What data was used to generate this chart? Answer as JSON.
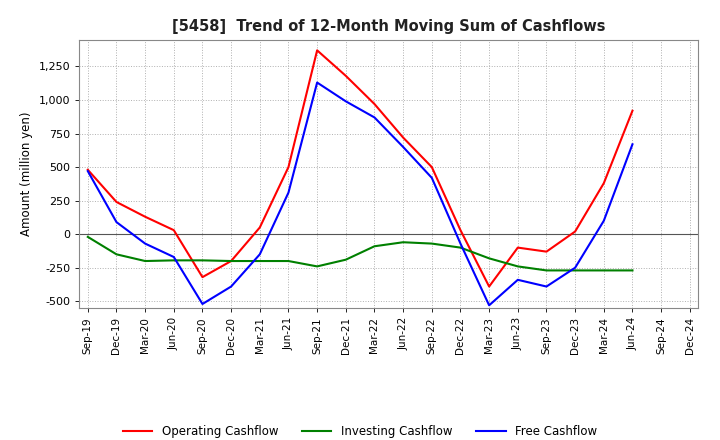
{
  "title": "[5458]  Trend of 12-Month Moving Sum of Cashflows",
  "ylabel": "Amount (million yen)",
  "ylim": [
    -550,
    1450
  ],
  "yticks": [
    -500,
    -250,
    0,
    250,
    500,
    750,
    1000,
    1250
  ],
  "background_color": "#ffffff",
  "grid_color": "#b0b0b0",
  "dates": [
    "Sep-19",
    "Dec-19",
    "Mar-20",
    "Jun-20",
    "Sep-20",
    "Dec-20",
    "Mar-21",
    "Jun-21",
    "Sep-21",
    "Dec-21",
    "Mar-22",
    "Jun-22",
    "Sep-22",
    "Dec-22",
    "Mar-23",
    "Jun-23",
    "Sep-23",
    "Dec-23",
    "Mar-24",
    "Jun-24",
    "Sep-24",
    "Dec-24"
  ],
  "operating": [
    480,
    240,
    130,
    30,
    -320,
    -200,
    50,
    500,
    1370,
    1180,
    970,
    720,
    500,
    30,
    -390,
    -100,
    -130,
    20,
    380,
    920,
    null,
    null
  ],
  "investing": [
    -20,
    -150,
    -200,
    -195,
    -195,
    -200,
    -200,
    -200,
    -240,
    -190,
    -90,
    -60,
    -70,
    -100,
    -180,
    -240,
    -270,
    -270,
    -270,
    -270,
    null,
    null
  ],
  "free": [
    470,
    90,
    -70,
    -170,
    -520,
    -390,
    -150,
    310,
    1130,
    990,
    870,
    650,
    420,
    -70,
    -530,
    -340,
    -390,
    -250,
    100,
    670,
    null,
    null
  ],
  "operating_color": "#ff0000",
  "investing_color": "#008000",
  "free_color": "#0000ff",
  "line_width": 1.5
}
